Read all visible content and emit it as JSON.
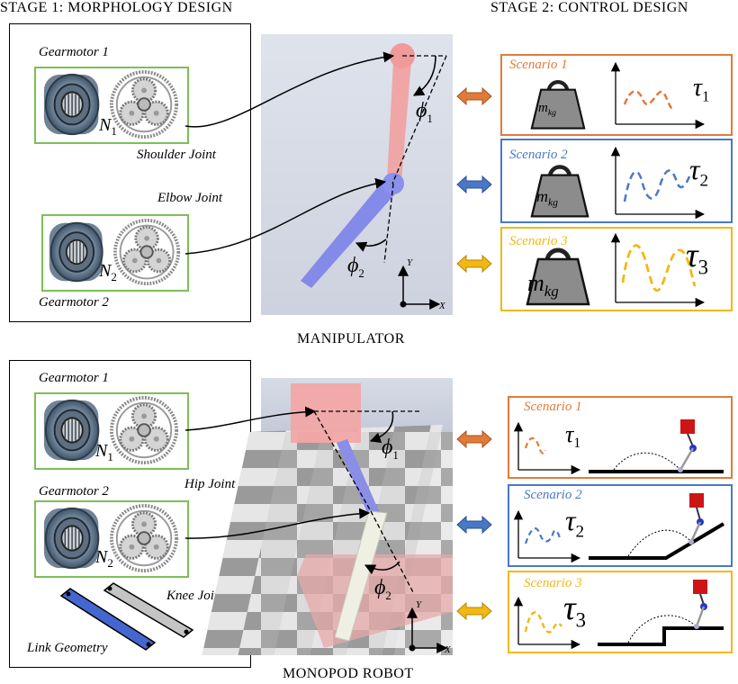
{
  "titles": {
    "stage1": "STAGE 1: MORPHOLOGY DESIGN",
    "stage2": "STAGE 2: CONTROL DESIGN"
  },
  "manipulator": {
    "caption": "MANIPULATOR",
    "gearmotor1": "Gearmotor 1",
    "gearmotor2": "Gearmotor 2",
    "n1": "N",
    "n1_sub": "1",
    "n2": "N",
    "n2_sub": "2",
    "joint1": "Shoulder Joint",
    "joint2": "Elbow Joint",
    "phi1": "ϕ",
    "phi1_sub": "1",
    "phi2": "ϕ",
    "phi2_sub": "2",
    "axis_y": "Y",
    "axis_x": "X",
    "scenarios": [
      {
        "label": "Scenario 1",
        "tau": "τ",
        "tau_sub": "1",
        "mass": "m",
        "mass_sub": "kg",
        "color": "#e07b3a"
      },
      {
        "label": "Scenario 2",
        "tau": "τ",
        "tau_sub": "2",
        "mass": "m",
        "mass_sub": "kg",
        "color": "#4a78c8"
      },
      {
        "label": "Scenario 3",
        "tau": "τ",
        "tau_sub": "3",
        "mass": "m",
        "mass_sub": "kg",
        "color": "#f2b812"
      }
    ]
  },
  "monopod": {
    "caption": "MONOPOD ROBOT",
    "gearmotor1": "Gearmotor 1",
    "gearmotor2": "Gearmotor 2",
    "n1": "N",
    "n1_sub": "1",
    "n2": "N",
    "n2_sub": "2",
    "joint1": "Hip Joint",
    "joint2": "Knee Joint",
    "link_geometry": "Link Geometry",
    "phi1": "ϕ",
    "phi1_sub": "1",
    "phi2": "ϕ",
    "phi2_sub": "2",
    "axis_y": "Y",
    "axis_x": "X",
    "scenarios": [
      {
        "label": "Scenario 1",
        "tau": "τ",
        "tau_sub": "1",
        "color": "#e07b3a"
      },
      {
        "label": "Scenario 2",
        "tau": "τ",
        "tau_sub": "2",
        "color": "#4a78c8"
      },
      {
        "label": "Scenario 3",
        "tau": "τ",
        "tau_sub": "3",
        "color": "#f2b812"
      }
    ]
  }
}
